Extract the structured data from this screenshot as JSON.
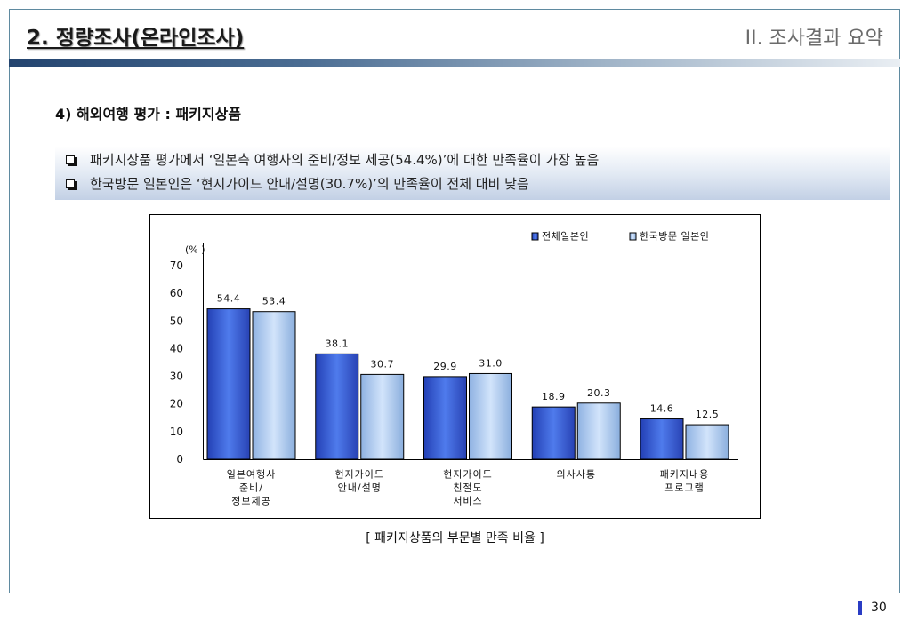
{
  "header": {
    "title": "2. 정량조사(온라인조사)",
    "section": "II. 조사결과 요약"
  },
  "subtitle": "4) 해외여행 평가 : 패키지상품",
  "bullets": {
    "icon": "hollow-square-bullet",
    "items": [
      "패키지상품 평가에서 ‘일본측 여행사의 준비/정보 제공(54.4%)’에 대한 만족율이 가장 높음",
      "한국방문 일본인은 ‘현지가이드 안내/설명(30.7%)’의 만족율이 전체 대비 낮음"
    ]
  },
  "chart_data": {
    "type": "bar",
    "ylabel": "(% )",
    "ylim": [
      0,
      70
    ],
    "yticks": [
      0,
      10,
      20,
      30,
      40,
      50,
      60,
      70
    ],
    "grid": false,
    "legend_position": "top-right",
    "categories": [
      [
        "일본여행사",
        "준비/",
        "정보제공"
      ],
      [
        "현지가이드",
        "안내/설명"
      ],
      [
        "현지가이드",
        "친절도",
        "서비스"
      ],
      [
        "의사사통"
      ],
      [
        "패키지내용",
        "프로그램"
      ]
    ],
    "series": [
      {
        "name": "전체일본인",
        "values": [
          54.4,
          38.1,
          29.9,
          18.9,
          14.6
        ],
        "color": "#3558cf",
        "gradient": [
          "#2340b5",
          "#4f7bec",
          "#2842b4"
        ]
      },
      {
        "name": "한국방문 일본인",
        "values": [
          53.4,
          30.7,
          31.0,
          20.3,
          12.5
        ],
        "color": "#a9c7ef",
        "gradient": [
          "#8fb2e2",
          "#d2e4fb",
          "#8aaedd"
        ]
      }
    ]
  },
  "caption": "[ 패키지상품의 부문별 만족 비율 ]",
  "footer": {
    "page_number": "30",
    "accent_color": "#2a3cc4"
  },
  "theme": {
    "frame_color": "#5f8aa0",
    "title_bar_gradient": [
      "#23446f",
      "#4b6d93",
      "#9fb3c7",
      "#e9eef3"
    ],
    "bullet_box_gradient": [
      "#ffffff",
      "#e3eaf4",
      "#c2d0e5"
    ]
  }
}
